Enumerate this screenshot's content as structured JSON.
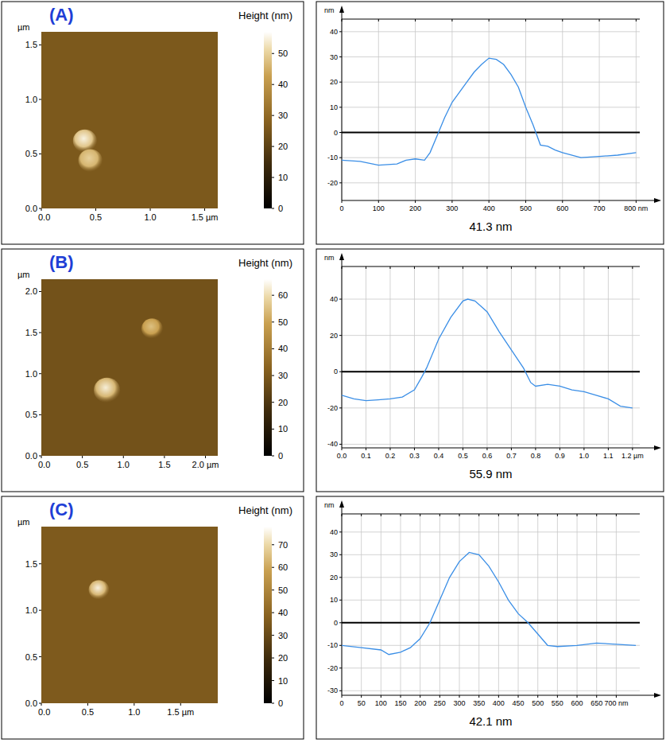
{
  "chart_data": [
    {
      "type": "heatmap",
      "title": "(A)",
      "y_label": "µm",
      "colorbar_title": "Height (nm)",
      "xlim": [
        0,
        1.62
      ],
      "xticks": [
        {
          "value": 0,
          "label": "0.0"
        },
        {
          "value": 0.5,
          "label": "0.5"
        },
        {
          "value": 1,
          "label": "1.0"
        },
        {
          "value": 1.5,
          "label": "1.5 µm"
        }
      ],
      "ylim": [
        0,
        1.62
      ],
      "yticks": [
        {
          "value": 0,
          "label": "0.0"
        },
        {
          "value": 0.5,
          "label": "0.5"
        },
        {
          "value": 1,
          "label": "1.0"
        },
        {
          "value": 1.5,
          "label": "1.5"
        }
      ],
      "colorbar_range": [
        0,
        57
      ],
      "colorbar_ticks": [
        0,
        10,
        20,
        30,
        40,
        50
      ],
      "background": 26,
      "particles": [
        {
          "x": 0.4,
          "y": 0.62,
          "r": 0.11,
          "height": 55
        },
        {
          "x": 0.45,
          "y": 0.44,
          "r": 0.11,
          "height": 50
        }
      ]
    },
    {
      "type": "line",
      "y_label": "nm",
      "annotation": "41.3 nm",
      "color": "#3a8ee6",
      "grid": true,
      "baseline": 0,
      "x": [
        0,
        50,
        100,
        150,
        175,
        200,
        225,
        240,
        260,
        280,
        300,
        320,
        340,
        360,
        380,
        400,
        420,
        440,
        460,
        480,
        500,
        520,
        540,
        560,
        580,
        600,
        650,
        700,
        750,
        800
      ],
      "values": [
        -11,
        -11.5,
        -13,
        -12.5,
        -11,
        -10.5,
        -11,
        -8,
        -1,
        6,
        12,
        16,
        20,
        24,
        27,
        29.5,
        29,
        27,
        23,
        18,
        10,
        3,
        -5,
        -5.5,
        -7,
        -8,
        -10,
        -9.5,
        -9,
        -8
      ],
      "xlim": [
        0,
        810
      ],
      "xticks": [
        0,
        100,
        200,
        300,
        400,
        500,
        600,
        700,
        {
          "value": 800,
          "label": "800 nm"
        }
      ],
      "ylim": [
        -27,
        45
      ],
      "yticks": [
        -20,
        -10,
        0,
        10,
        20,
        30,
        40
      ]
    },
    {
      "type": "heatmap",
      "title": "(B)",
      "y_label": "µm",
      "colorbar_title": "Height (nm)",
      "xlim": [
        0,
        2.15
      ],
      "xticks": [
        {
          "value": 0,
          "label": "0.0"
        },
        {
          "value": 0.5,
          "label": "0.5"
        },
        {
          "value": 1,
          "label": "1.0"
        },
        {
          "value": 1.5,
          "label": "1.5"
        },
        {
          "value": 2,
          "label": "2.0 µm"
        }
      ],
      "ylim": [
        0,
        2.15
      ],
      "yticks": [
        {
          "value": 0,
          "label": "0.0"
        },
        {
          "value": 0.5,
          "label": "0.5"
        },
        {
          "value": 1,
          "label": "1.0"
        },
        {
          "value": 1.5,
          "label": "1.5"
        },
        {
          "value": 2,
          "label": "2.0"
        }
      ],
      "colorbar_range": [
        0,
        66
      ],
      "colorbar_ticks": [
        0,
        10,
        20,
        30,
        40,
        50,
        60
      ],
      "background": 28,
      "particles": [
        {
          "x": 1.35,
          "y": 1.55,
          "r": 0.13,
          "height": 55
        },
        {
          "x": 0.8,
          "y": 0.8,
          "r": 0.16,
          "height": 63
        }
      ]
    },
    {
      "type": "line",
      "y_label": "nm",
      "annotation": "55.9 nm",
      "color": "#3a8ee6",
      "grid": true,
      "baseline": 0,
      "x": [
        0,
        0.05,
        0.1,
        0.15,
        0.2,
        0.25,
        0.3,
        0.33,
        0.35,
        0.4,
        0.45,
        0.5,
        0.52,
        0.55,
        0.6,
        0.65,
        0.7,
        0.75,
        0.78,
        0.8,
        0.85,
        0.9,
        0.95,
        1.0,
        1.05,
        1.1,
        1.15,
        1.2
      ],
      "values": [
        -13,
        -15,
        -16,
        -15.5,
        -15,
        -14,
        -10,
        -3,
        2,
        18,
        30,
        39,
        40,
        39,
        33,
        22,
        12,
        2,
        -6,
        -8,
        -7,
        -8,
        -10,
        -11,
        -13,
        -15,
        -19,
        -20
      ],
      "xlim": [
        0,
        1.23
      ],
      "xticks": [
        {
          "value": 0,
          "label": "0.0"
        },
        0.1,
        0.2,
        0.3,
        0.4,
        0.5,
        0.6,
        0.7,
        0.8,
        0.9,
        {
          "value": 1,
          "label": "1.0"
        },
        1.1,
        {
          "value": 1.2,
          "label": "1.2 µm"
        }
      ],
      "ylim": [
        -42,
        58
      ],
      "yticks": [
        -40,
        -20,
        0,
        20,
        40
      ]
    },
    {
      "type": "heatmap",
      "title": "(C)",
      "y_label": "µm",
      "colorbar_title": "Height (nm)",
      "xlim": [
        0,
        1.9
      ],
      "xticks": [
        {
          "value": 0,
          "label": "0.0"
        },
        {
          "value": 0.5,
          "label": "0.5"
        },
        {
          "value": 1,
          "label": "1.0"
        },
        {
          "value": 1.5,
          "label": "1.5 µm"
        }
      ],
      "ylim": [
        0,
        1.9
      ],
      "yticks": [
        {
          "value": 0,
          "label": "0.0"
        },
        {
          "value": 0.5,
          "label": "0.5"
        },
        {
          "value": 1,
          "label": "1.0"
        },
        {
          "value": 1.5,
          "label": "1.5"
        }
      ],
      "colorbar_range": [
        0,
        78
      ],
      "colorbar_ticks": [
        0,
        10,
        20,
        30,
        40,
        50,
        60,
        70
      ],
      "background": 36,
      "particles": [
        {
          "x": 0.62,
          "y": 1.22,
          "r": 0.11,
          "height": 75
        }
      ]
    },
    {
      "type": "line",
      "y_label": "nm",
      "annotation": "42.1 nm",
      "color": "#3a8ee6",
      "grid": true,
      "baseline": 0,
      "x": [
        0,
        50,
        100,
        120,
        150,
        175,
        200,
        225,
        250,
        275,
        300,
        325,
        350,
        375,
        400,
        425,
        450,
        475,
        500,
        525,
        550,
        600,
        650,
        700,
        750
      ],
      "values": [
        -10,
        -11,
        -12,
        -14,
        -13,
        -11,
        -7,
        0,
        10,
        20,
        27,
        31,
        30,
        25,
        18,
        10,
        4,
        0,
        -5,
        -10,
        -10.5,
        -10,
        -9,
        -9.5,
        -10
      ],
      "xlim": [
        0,
        760
      ],
      "xticks": [
        0,
        50,
        100,
        150,
        200,
        250,
        300,
        350,
        400,
        450,
        500,
        550,
        600,
        650,
        {
          "value": 700,
          "label": "700 nm"
        }
      ],
      "ylim": [
        -32,
        48
      ],
      "yticks": [
        -30,
        -20,
        -10,
        0,
        10,
        20,
        30,
        40
      ]
    }
  ]
}
